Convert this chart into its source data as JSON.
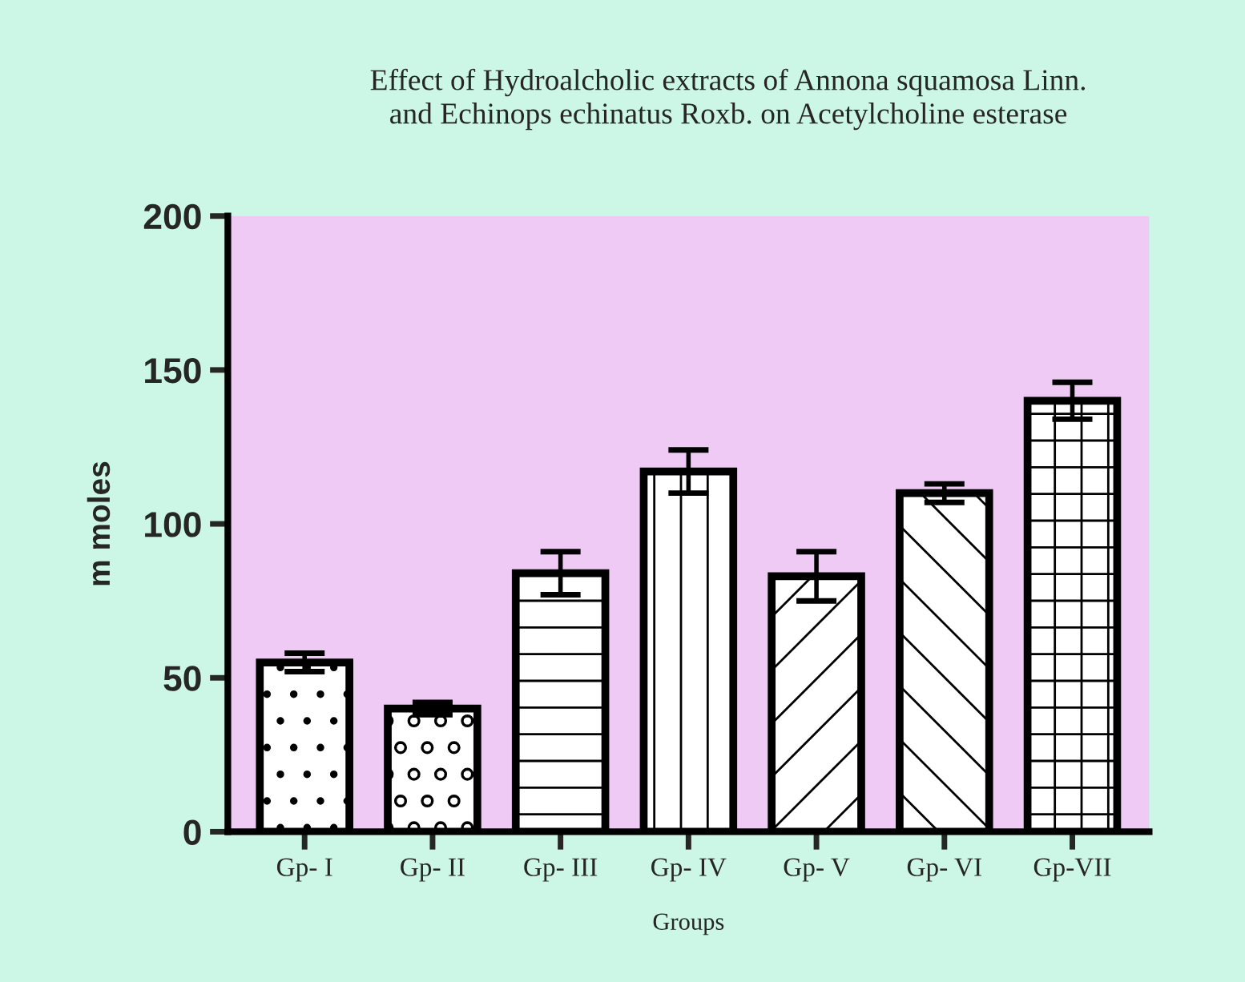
{
  "chart_data": {
    "type": "bar",
    "title": "Effect of Hydroalcholic extracts of Annona squamosa Linn.\nand Echinops echinatus Roxb. on Acetylcholine esterase",
    "xlabel": "Groups",
    "ylabel": "m moles",
    "categories": [
      "Gp- I",
      "Gp- II",
      "Gp- III",
      "Gp- IV",
      "Gp- V",
      "Gp- VI",
      "Gp-VII"
    ],
    "values": [
      55,
      40,
      84,
      117,
      83,
      110,
      140
    ],
    "errors": [
      3,
      2,
      7,
      7,
      8,
      3,
      6
    ],
    "ylim": [
      0,
      200
    ],
    "yticks": [
      0,
      50,
      100,
      150,
      200
    ],
    "grid": false,
    "legend": false
  }
}
